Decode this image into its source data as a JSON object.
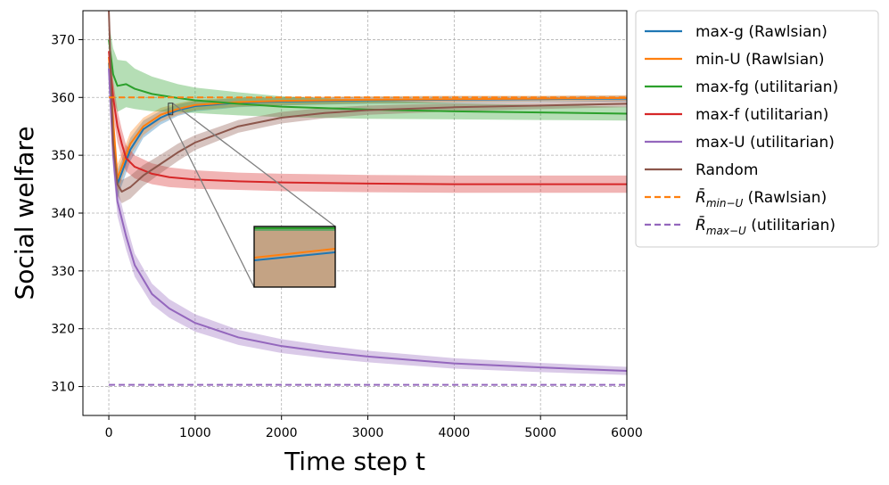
{
  "chart_data": {
    "type": "line",
    "xlabel": "Time step t",
    "ylabel": "Social welfare",
    "xlim": [
      -300,
      6000
    ],
    "ylim": [
      305,
      375
    ],
    "x_ticks": [
      0,
      1000,
      2000,
      3000,
      4000,
      5000,
      6000
    ],
    "y_ticks": [
      310,
      320,
      330,
      340,
      350,
      360,
      370
    ],
    "grid": true,
    "legend_position": "outside-right",
    "series": [
      {
        "name": "max-g (Rawlsian)",
        "color": "#1f77b4",
        "style": "solid",
        "x": [
          0,
          50,
          100,
          150,
          250,
          400,
          600,
          800,
          1000,
          1500,
          2000,
          3000,
          4000,
          5000,
          6000
        ],
        "y": [
          366,
          355,
          345,
          347,
          351,
          354.5,
          356.5,
          357.8,
          358.5,
          359.1,
          359.3,
          359.5,
          359.6,
          359.7,
          359.8
        ],
        "band": [
          1.5,
          2.5,
          2.5,
          2.2,
          2,
          1.5,
          1.2,
          1,
          0.9,
          0.8,
          0.7,
          0.6,
          0.6,
          0.5,
          0.5
        ]
      },
      {
        "name": "min-U (Rawlsian)",
        "color": "#ff7f0e",
        "style": "solid",
        "x": [
          0,
          50,
          100,
          150,
          250,
          400,
          600,
          800,
          1000,
          1500,
          2000,
          3000,
          4000,
          5000,
          6000
        ],
        "y": [
          367,
          356,
          346,
          348,
          352,
          355,
          357,
          358,
          358.7,
          359.2,
          359.4,
          359.6,
          359.7,
          359.8,
          359.9
        ],
        "band": [
          1.5,
          2.5,
          2.5,
          2.2,
          2,
          1.5,
          1.2,
          1,
          0.9,
          0.8,
          0.7,
          0.6,
          0.6,
          0.5,
          0.5
        ]
      },
      {
        "name": "max-fg (utilitarian)",
        "color": "#2ca02c",
        "style": "solid",
        "x": [
          0,
          50,
          100,
          200,
          300,
          500,
          800,
          1000,
          1500,
          2000,
          3000,
          4000,
          5000,
          6000
        ],
        "y": [
          370,
          364,
          362,
          362.3,
          361.5,
          360.6,
          359.9,
          359.5,
          358.9,
          358.4,
          357.9,
          357.6,
          357.4,
          357.2
        ],
        "band": [
          3,
          4.5,
          4.5,
          4,
          3.5,
          3,
          2.4,
          2.2,
          2,
          1.8,
          1.6,
          1.4,
          1.3,
          1.2
        ]
      },
      {
        "name": "max-f (utilitarian)",
        "color": "#d62728",
        "style": "solid",
        "x": [
          0,
          50,
          100,
          150,
          200,
          300,
          500,
          700,
          1000,
          1500,
          2000,
          3000,
          4000,
          5000,
          6000
        ],
        "y": [
          368,
          360,
          355,
          352,
          349.5,
          348,
          346.8,
          346.2,
          345.8,
          345.5,
          345.3,
          345.1,
          345.0,
          345.0,
          345.0
        ],
        "band": [
          3,
          3,
          2.8,
          2.5,
          2.3,
          2,
          1.8,
          1.7,
          1.6,
          1.5,
          1.5,
          1.5,
          1.5,
          1.5,
          1.5
        ]
      },
      {
        "name": "max-U (utilitarian)",
        "color": "#9467bd",
        "style": "solid",
        "x": [
          0,
          50,
          100,
          200,
          300,
          500,
          700,
          1000,
          1500,
          2000,
          2500,
          3000,
          4000,
          5000,
          6000
        ],
        "y": [
          365,
          350,
          342,
          336,
          331,
          326,
          323.5,
          321,
          318.5,
          317,
          316,
          315.2,
          314,
          313.3,
          312.7
        ],
        "band": [
          2,
          2.5,
          2.5,
          2.3,
          2,
          1.8,
          1.6,
          1.5,
          1.3,
          1.2,
          1.1,
          1,
          0.9,
          0.8,
          0.7
        ]
      },
      {
        "name": "Random",
        "color": "#8c564b",
        "style": "solid",
        "x": [
          0,
          50,
          100,
          150,
          250,
          400,
          600,
          800,
          1000,
          1500,
          2000,
          2500,
          3000,
          4000,
          5000,
          6000
        ],
        "y": [
          375,
          352,
          345,
          343.7,
          344.5,
          346.5,
          348.5,
          350.5,
          352.2,
          355,
          356.5,
          357.3,
          357.8,
          358.3,
          358.6,
          358.9
        ],
        "band": [
          2,
          2.5,
          2,
          2,
          2,
          1.8,
          1.6,
          1.5,
          1.3,
          1.1,
          1,
          0.9,
          0.8,
          0.7,
          0.6,
          0.6
        ]
      },
      {
        "name": "R̄min−U (Rawlsian)",
        "color": "#ff7f0e",
        "style": "dashed",
        "x": [
          0,
          6000
        ],
        "y": [
          360,
          360
        ]
      },
      {
        "name": "R̄max−U (utilitarian)",
        "color": "#9467bd",
        "style": "dashed",
        "x": [
          0,
          6000
        ],
        "y": [
          310.3,
          310.3
        ]
      }
    ],
    "inset": {
      "source_xlim": [
        690,
        740
      ],
      "source_ylim": [
        357,
        359
      ],
      "zoom_box_xlim": [
        690,
        740
      ],
      "zoom_box_ylim": [
        357,
        359
      ]
    }
  },
  "legend": {
    "entries": [
      {
        "label": "max-g (Rawlsian)",
        "color": "#1f77b4",
        "style": "solid"
      },
      {
        "label": "min-U (Rawlsian)",
        "color": "#ff7f0e",
        "style": "solid"
      },
      {
        "label": "max-fg (utilitarian)",
        "color": "#2ca02c",
        "style": "solid"
      },
      {
        "label": "max-f (utilitarian)",
        "color": "#d62728",
        "style": "solid"
      },
      {
        "label": "max-U (utilitarian)",
        "color": "#9467bd",
        "style": "solid"
      },
      {
        "label": "Random",
        "color": "#8c564b",
        "style": "solid"
      },
      {
        "label": "(Rawlsian)",
        "math_base": "R̄",
        "math_sub": "min−U",
        "color": "#ff7f0e",
        "style": "dashed"
      },
      {
        "label": "(utilitarian)",
        "math_base": "R̄",
        "math_sub": "max−U",
        "color": "#9467bd",
        "style": "dashed"
      }
    ]
  }
}
